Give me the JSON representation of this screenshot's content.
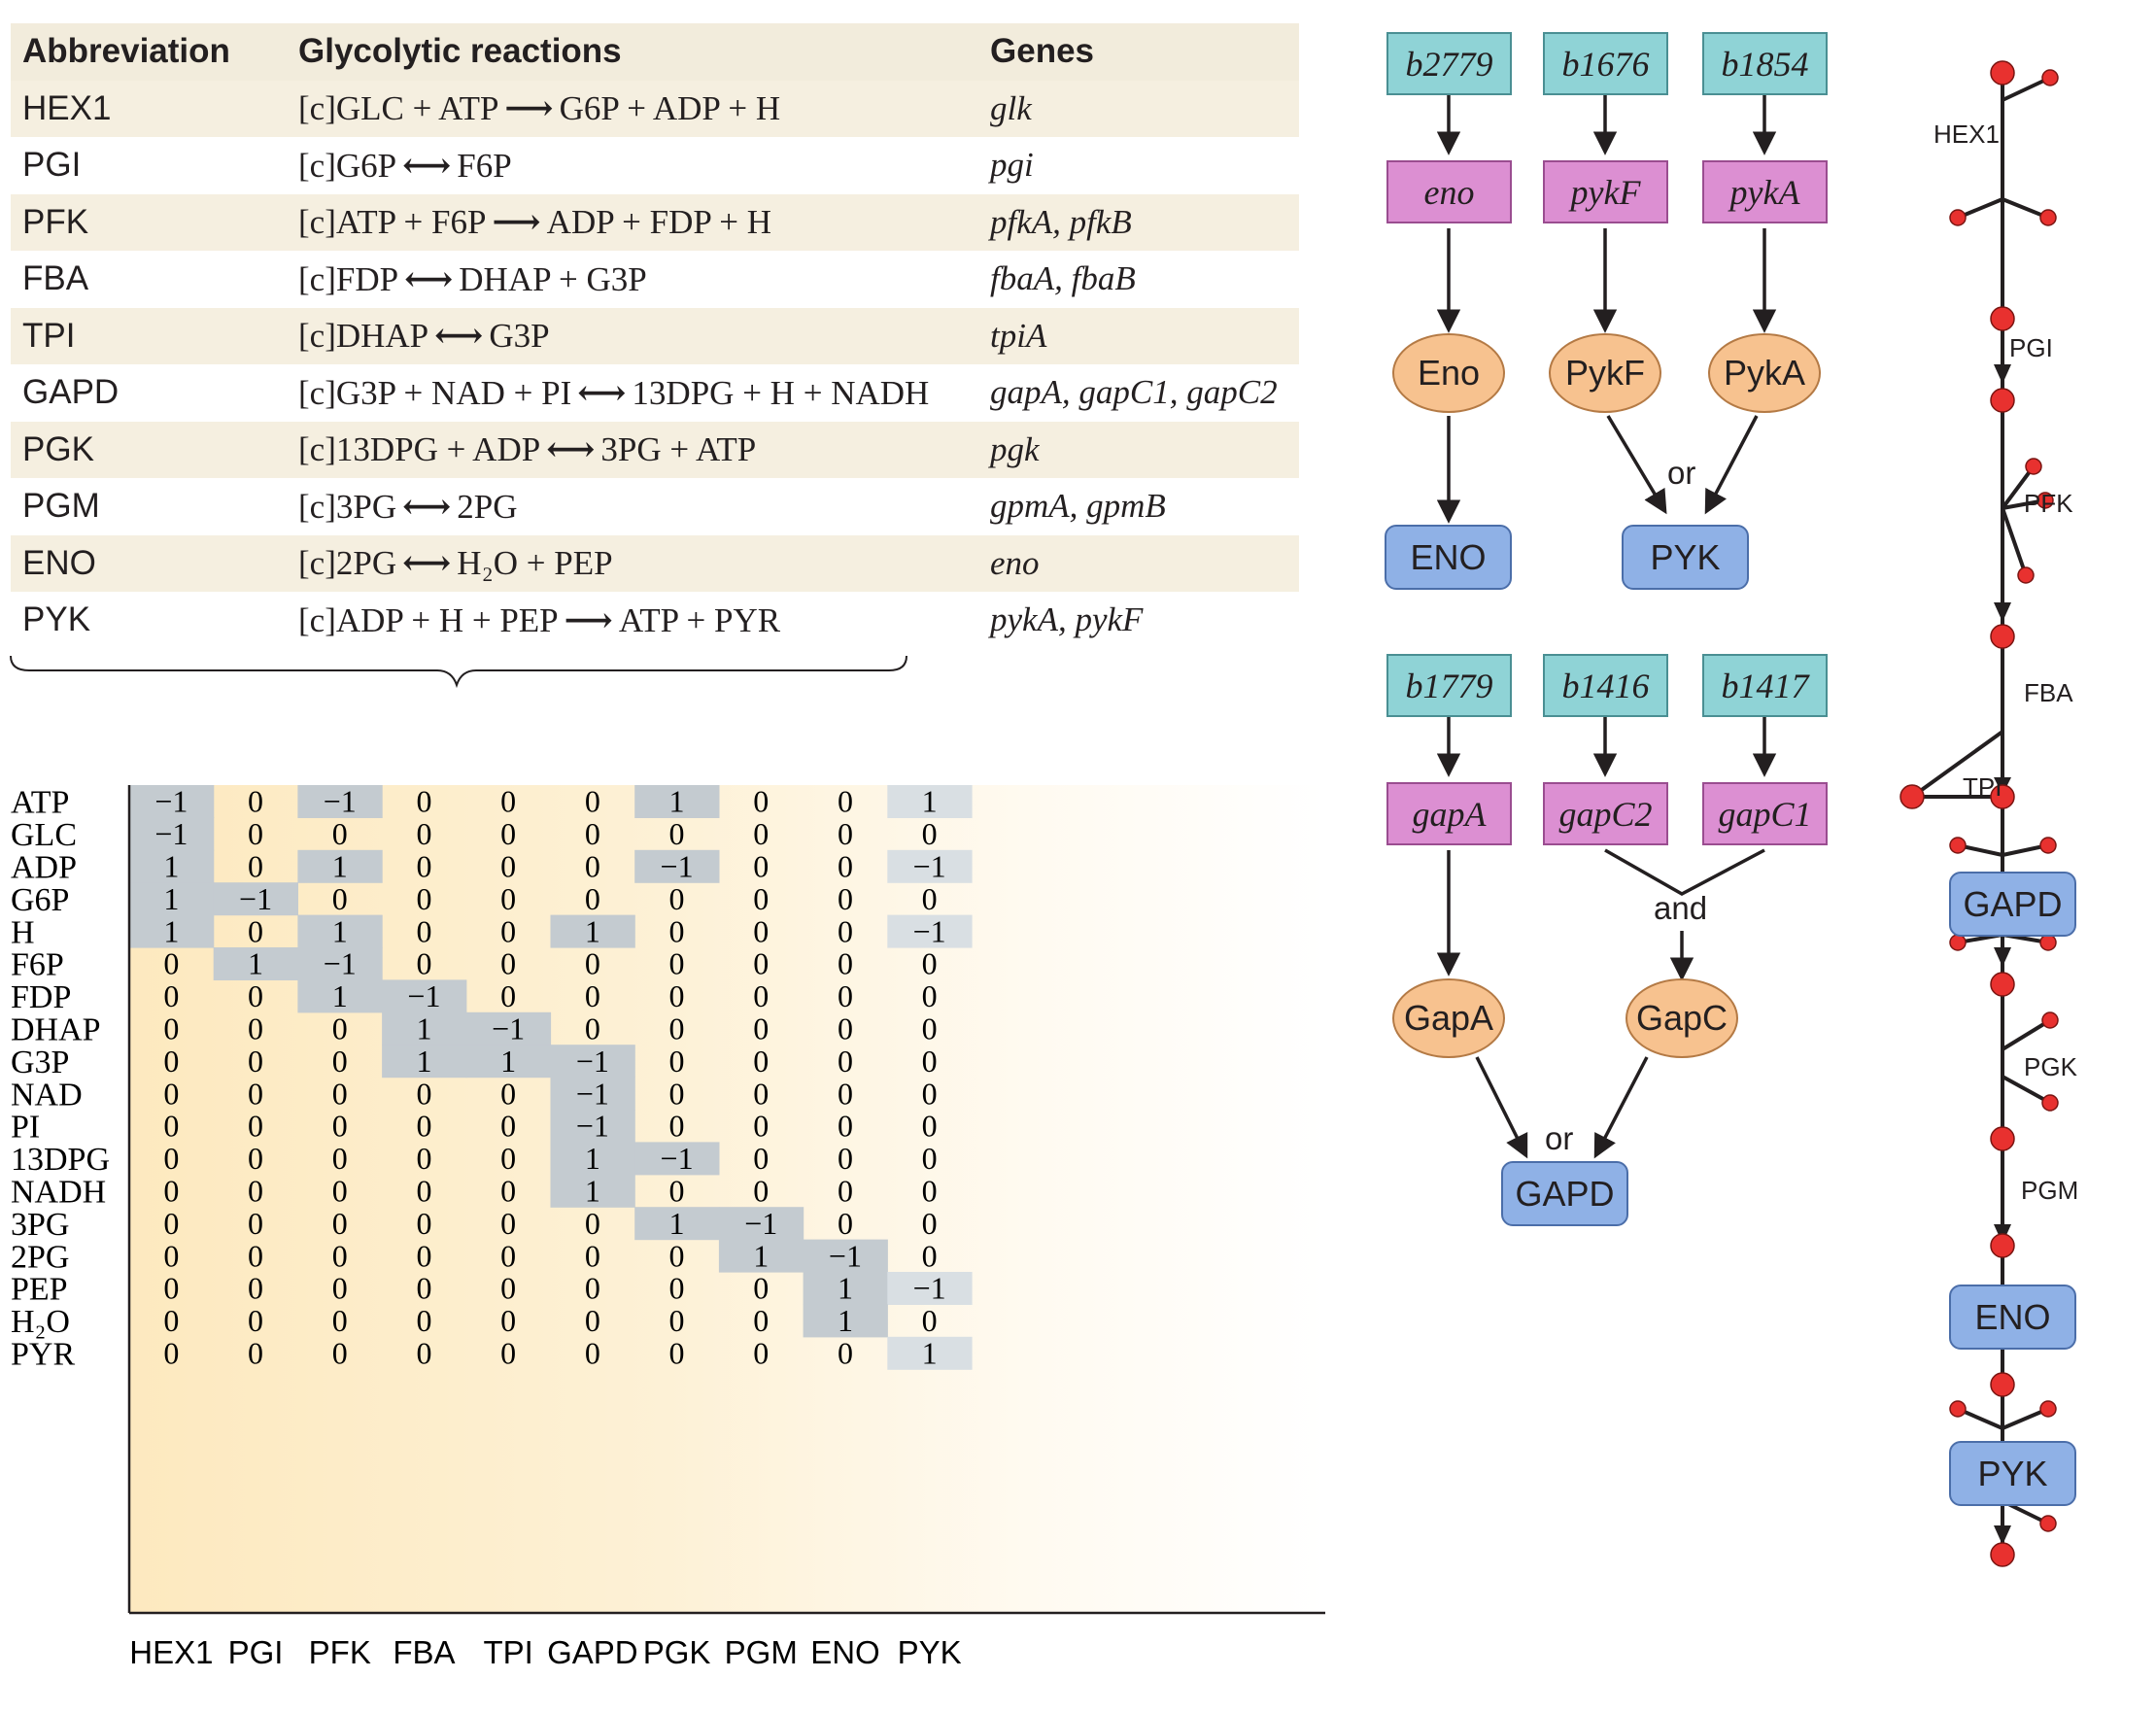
{
  "table": {
    "headers": {
      "abbr": "Abbreviation",
      "reactions": "Glycolytic reactions",
      "genes": "Genes"
    },
    "rows": [
      {
        "abbr": "HEX1",
        "comp": "[c]",
        "left": "GLC + ATP",
        "arrow": "⟶",
        "right": "G6P + ADP + H",
        "genes": "glk"
      },
      {
        "abbr": "PGI",
        "comp": "[c]",
        "left": "G6P",
        "arrow": "⟷",
        "right": "F6P",
        "genes": "pgi"
      },
      {
        "abbr": "PFK",
        "comp": "[c]",
        "left": "ATP + F6P",
        "arrow": "⟶",
        "right": "ADP + FDP + H",
        "genes": "pfkA, pfkB"
      },
      {
        "abbr": "FBA",
        "comp": "[c]",
        "left": "FDP",
        "arrow": "⟷",
        "right": "DHAP + G3P",
        "genes": "fbaA, fbaB"
      },
      {
        "abbr": "TPI",
        "comp": "[c]",
        "left": "DHAP",
        "arrow": "⟷",
        "right": "G3P",
        "genes": "tpiA"
      },
      {
        "abbr": "GAPD",
        "comp": "[c]",
        "left": "G3P + NAD + PI",
        "arrow": "⟷",
        "right": "13DPG + H + NADH",
        "genes": "gapA, gapC1, gapC2"
      },
      {
        "abbr": "PGK",
        "comp": "[c]",
        "left": "13DPG + ADP",
        "arrow": "⟷",
        "right": "3PG + ATP",
        "genes": "pgk"
      },
      {
        "abbr": "PGM",
        "comp": "[c]",
        "left": "3PG",
        "arrow": "⟷",
        "right": "2PG",
        "genes": "gpmA, gpmB"
      },
      {
        "abbr": "ENO",
        "comp": "[c]",
        "left": "2PG",
        "arrow": "⟷",
        "right": "H₂O + PEP",
        "genes": "eno"
      },
      {
        "abbr": "PYK",
        "comp": "[c]",
        "left": "ADP + H + PEP",
        "arrow": "⟶",
        "right": "ATP + PYR",
        "genes": "pykA, pykF"
      }
    ]
  },
  "matrix": {
    "columns": [
      "HEX1",
      "PGI",
      "PFK",
      "FBA",
      "TPI",
      "GAPD",
      "PGK",
      "PGM",
      "ENO",
      "PYK"
    ],
    "rows": [
      "ATP",
      "GLC",
      "ADP",
      "G6P",
      "H",
      "F6P",
      "FDP",
      "DHAP",
      "G3P",
      "NAD",
      "PI",
      "13DPG",
      "NADH",
      "3PG",
      "2PG",
      "PEP",
      "H₂O",
      "PYR"
    ],
    "values": [
      [
        -1,
        0,
        -1,
        0,
        0,
        0,
        1,
        0,
        0,
        1
      ],
      [
        -1,
        0,
        0,
        0,
        0,
        0,
        0,
        0,
        0,
        0
      ],
      [
        1,
        0,
        1,
        0,
        0,
        0,
        -1,
        0,
        0,
        -1
      ],
      [
        1,
        -1,
        0,
        0,
        0,
        0,
        0,
        0,
        0,
        0
      ],
      [
        1,
        0,
        1,
        0,
        0,
        1,
        0,
        0,
        0,
        -1
      ],
      [
        0,
        1,
        -1,
        0,
        0,
        0,
        0,
        0,
        0,
        0
      ],
      [
        0,
        0,
        1,
        -1,
        0,
        0,
        0,
        0,
        0,
        0
      ],
      [
        0,
        0,
        0,
        1,
        -1,
        0,
        0,
        0,
        0,
        0
      ],
      [
        0,
        0,
        0,
        1,
        1,
        -1,
        0,
        0,
        0,
        0
      ],
      [
        0,
        0,
        0,
        0,
        0,
        -1,
        0,
        0,
        0,
        0
      ],
      [
        0,
        0,
        0,
        0,
        0,
        -1,
        0,
        0,
        0,
        0
      ],
      [
        0,
        0,
        0,
        0,
        0,
        1,
        -1,
        0,
        0,
        0
      ],
      [
        0,
        0,
        0,
        0,
        0,
        1,
        0,
        0,
        0,
        0
      ],
      [
        0,
        0,
        0,
        0,
        0,
        0,
        1,
        -1,
        0,
        0
      ],
      [
        0,
        0,
        0,
        0,
        0,
        0,
        0,
        1,
        -1,
        0
      ],
      [
        0,
        0,
        0,
        0,
        0,
        0,
        0,
        0,
        1,
        -1
      ],
      [
        0,
        0,
        0,
        0,
        0,
        0,
        0,
        0,
        1,
        0
      ],
      [
        0,
        0,
        0,
        0,
        0,
        0,
        0,
        0,
        0,
        1
      ]
    ],
    "highlight_color": "#c4cbd0",
    "highlight_light": "#d9dfe3"
  },
  "gpr": {
    "eno_pyk": {
      "genes": [
        "b2779",
        "b1676",
        "b1854"
      ],
      "transcripts": [
        "eno",
        "pykF",
        "pykA"
      ],
      "proteins": [
        "Eno",
        "PykF",
        "PykA"
      ],
      "reactions": [
        "ENO",
        "PYK"
      ],
      "logic": "or"
    },
    "gapd": {
      "genes": [
        "b1779",
        "b1416",
        "b1417"
      ],
      "transcripts": [
        "gapA",
        "gapC2",
        "gapC1"
      ],
      "proteins": [
        "GapA",
        "GapC"
      ],
      "reaction": "GAPD",
      "logic_and": "and",
      "logic_or": "or"
    }
  },
  "network": {
    "labels": [
      "HEX1",
      "PGI",
      "PFK",
      "FBA",
      "TPI",
      "GAPD",
      "PGK",
      "PGM",
      "ENO",
      "PYK"
    ],
    "node_color": "#e8312f"
  }
}
